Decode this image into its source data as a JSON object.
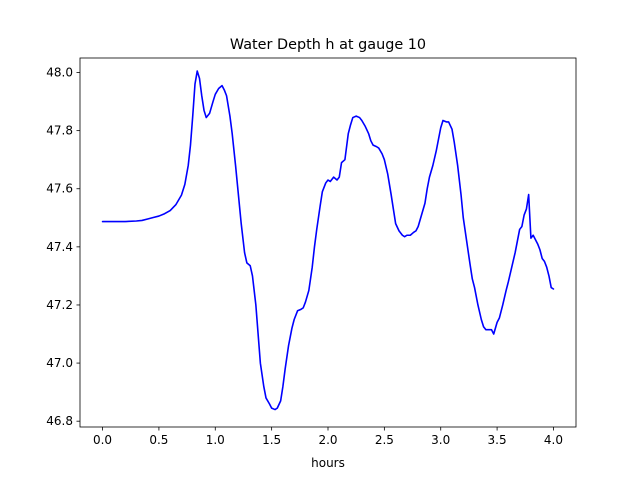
{
  "chart_data": {
    "type": "line",
    "title": "Water Depth h at gauge 10",
    "xlabel": "hours",
    "ylabel": "",
    "xlim": [
      -0.2,
      4.2
    ],
    "ylim": [
      46.78,
      48.05
    ],
    "xticks": [
      0.0,
      0.5,
      1.0,
      1.5,
      2.0,
      2.5,
      3.0,
      3.5,
      4.0
    ],
    "xtick_labels": [
      "0.0",
      "0.5",
      "1.0",
      "1.5",
      "2.0",
      "2.5",
      "3.0",
      "3.5",
      "4.0"
    ],
    "yticks": [
      46.8,
      47.0,
      47.2,
      47.4,
      47.6,
      47.8,
      48.0
    ],
    "ytick_labels": [
      "46.8",
      "47.0",
      "47.2",
      "47.4",
      "47.6",
      "47.8",
      "48.0"
    ],
    "grid": false,
    "series": [
      {
        "color": "#0000ff",
        "x": [
          0.0,
          0.1,
          0.2,
          0.3,
          0.35,
          0.4,
          0.45,
          0.5,
          0.55,
          0.6,
          0.65,
          0.7,
          0.73,
          0.76,
          0.78,
          0.8,
          0.82,
          0.84,
          0.86,
          0.88,
          0.9,
          0.92,
          0.95,
          0.98,
          1.0,
          1.03,
          1.06,
          1.08,
          1.1,
          1.13,
          1.15,
          1.18,
          1.2,
          1.23,
          1.26,
          1.28,
          1.31,
          1.33,
          1.36,
          1.38,
          1.4,
          1.43,
          1.45,
          1.48,
          1.5,
          1.53,
          1.55,
          1.58,
          1.6,
          1.62,
          1.65,
          1.68,
          1.7,
          1.73,
          1.76,
          1.78,
          1.8,
          1.83,
          1.86,
          1.88,
          1.9,
          1.93,
          1.95,
          1.98,
          2.0,
          2.02,
          2.05,
          2.08,
          2.1,
          2.12,
          2.15,
          2.18,
          2.2,
          2.22,
          2.25,
          2.28,
          2.3,
          2.33,
          2.36,
          2.38,
          2.4,
          2.43,
          2.45,
          2.48,
          2.5,
          2.53,
          2.56,
          2.58,
          2.6,
          2.63,
          2.66,
          2.68,
          2.7,
          2.73,
          2.76,
          2.78,
          2.8,
          2.83,
          2.86,
          2.88,
          2.9,
          2.93,
          2.96,
          2.98,
          3.0,
          3.02,
          3.05,
          3.07,
          3.1,
          3.12,
          3.15,
          3.18,
          3.2,
          3.23,
          3.26,
          3.28,
          3.3,
          3.33,
          3.36,
          3.38,
          3.4,
          3.43,
          3.45,
          3.47,
          3.5,
          3.52,
          3.55,
          3.58,
          3.6,
          3.63,
          3.66,
          3.68,
          3.7,
          3.72,
          3.74,
          3.76,
          3.78,
          3.8,
          3.82,
          3.84,
          3.86,
          3.88,
          3.9,
          3.92,
          3.94,
          3.96,
          3.98,
          4.0
        ],
        "y": [
          47.487,
          47.487,
          47.487,
          47.489,
          47.491,
          47.496,
          47.501,
          47.506,
          47.514,
          47.525,
          47.545,
          47.578,
          47.615,
          47.68,
          47.75,
          47.85,
          47.96,
          48.005,
          47.98,
          47.92,
          47.87,
          47.845,
          47.86,
          47.9,
          47.925,
          47.945,
          47.955,
          47.94,
          47.92,
          47.85,
          47.79,
          47.68,
          47.6,
          47.48,
          47.38,
          47.345,
          47.335,
          47.3,
          47.2,
          47.1,
          47.0,
          46.92,
          46.88,
          46.86,
          46.845,
          46.84,
          46.845,
          46.87,
          46.92,
          46.98,
          47.06,
          47.12,
          47.15,
          47.18,
          47.185,
          47.19,
          47.21,
          47.25,
          47.33,
          47.4,
          47.46,
          47.54,
          47.59,
          47.62,
          47.63,
          47.625,
          47.64,
          47.63,
          47.64,
          47.69,
          47.7,
          47.79,
          47.82,
          47.845,
          47.85,
          47.845,
          47.835,
          47.815,
          47.79,
          47.765,
          47.75,
          47.745,
          47.74,
          47.72,
          47.7,
          47.65,
          47.58,
          47.53,
          47.48,
          47.455,
          47.44,
          47.435,
          47.44,
          47.44,
          47.45,
          47.455,
          47.47,
          47.51,
          47.55,
          47.6,
          47.64,
          47.68,
          47.73,
          47.77,
          47.81,
          47.835,
          47.83,
          47.83,
          47.805,
          47.76,
          47.68,
          47.58,
          47.5,
          47.42,
          47.34,
          47.29,
          47.26,
          47.2,
          47.15,
          47.125,
          47.115,
          47.115,
          47.115,
          47.1,
          47.14,
          47.155,
          47.2,
          47.25,
          47.28,
          47.33,
          47.38,
          47.42,
          47.46,
          47.47,
          47.51,
          47.53,
          47.58,
          47.43,
          47.44,
          47.425,
          47.41,
          47.39,
          47.36,
          47.35,
          47.33,
          47.3,
          47.26,
          47.255
        ]
      }
    ]
  }
}
